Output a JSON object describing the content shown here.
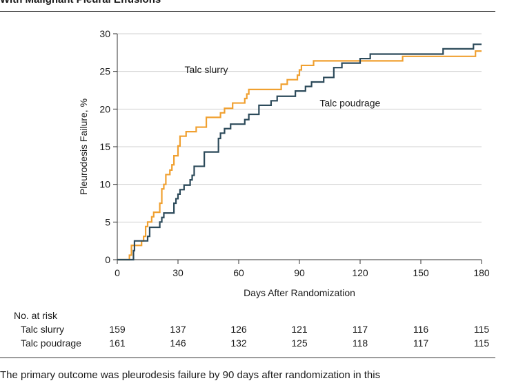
{
  "figure_title": "With Malignant Pleural Effusions",
  "bottom_text": "The primary outcome was pleurodesis failure by 90 days after randomization in this",
  "chart_data": {
    "type": "line",
    "step": true,
    "xlabel": "Days After Randomization",
    "ylabel": "Pleurodesis Failure, %",
    "xlim": [
      0,
      180
    ],
    "ylim": [
      0,
      30
    ],
    "xticks": [
      0,
      30,
      60,
      90,
      120,
      150,
      180
    ],
    "yticks": [
      0,
      5,
      10,
      15,
      20,
      25,
      30
    ],
    "grid": "horizontal",
    "series": [
      {
        "name": "Talc slurry",
        "color": "#F0A030",
        "points": [
          [
            0,
            0
          ],
          [
            5,
            0
          ],
          [
            6,
            0.6
          ],
          [
            7,
            1.9
          ],
          [
            11,
            1.9
          ],
          [
            12,
            2.5
          ],
          [
            13,
            3.1
          ],
          [
            14,
            4.4
          ],
          [
            15,
            5.0
          ],
          [
            16,
            5.0
          ],
          [
            17,
            5.7
          ],
          [
            18,
            6.3
          ],
          [
            20,
            6.3
          ],
          [
            21,
            7.5
          ],
          [
            22,
            9.4
          ],
          [
            23,
            10.0
          ],
          [
            24,
            11.3
          ],
          [
            25,
            11.3
          ],
          [
            26,
            11.9
          ],
          [
            27,
            12.6
          ],
          [
            28,
            13.8
          ],
          [
            30,
            15.1
          ],
          [
            31,
            16.4
          ],
          [
            33,
            16.4
          ],
          [
            34,
            17.0
          ],
          [
            38,
            17.0
          ],
          [
            39,
            17.6
          ],
          [
            43,
            17.6
          ],
          [
            44,
            18.9
          ],
          [
            50,
            18.9
          ],
          [
            51,
            19.5
          ],
          [
            53,
            20.1
          ],
          [
            56,
            20.1
          ],
          [
            57,
            20.8
          ],
          [
            62,
            20.8
          ],
          [
            63,
            21.4
          ],
          [
            64,
            22.0
          ],
          [
            65,
            22.6
          ],
          [
            80,
            22.6
          ],
          [
            81,
            23.3
          ],
          [
            84,
            23.9
          ],
          [
            88,
            23.9
          ],
          [
            89,
            24.5
          ],
          [
            90,
            25.2
          ],
          [
            91,
            25.8
          ],
          [
            96,
            25.8
          ],
          [
            97,
            26.4
          ],
          [
            118,
            26.4
          ],
          [
            119,
            26.4
          ],
          [
            140,
            26.4
          ],
          [
            141,
            27.0
          ],
          [
            176,
            27.0
          ],
          [
            177,
            27.7
          ],
          [
            180,
            27.7
          ]
        ]
      },
      {
        "name": "Talc poudrage",
        "color": "#2C4A5A",
        "points": [
          [
            0,
            0
          ],
          [
            7,
            0
          ],
          [
            8,
            1.2
          ],
          [
            8.5,
            2.5
          ],
          [
            14,
            2.5
          ],
          [
            15,
            3.1
          ],
          [
            16,
            4.3
          ],
          [
            20,
            4.3
          ],
          [
            21,
            5.0
          ],
          [
            22,
            5.6
          ],
          [
            23,
            6.2
          ],
          [
            27,
            6.2
          ],
          [
            28,
            7.5
          ],
          [
            29,
            8.1
          ],
          [
            30,
            8.7
          ],
          [
            31,
            9.3
          ],
          [
            33,
            9.9
          ],
          [
            36,
            10.6
          ],
          [
            37,
            11.2
          ],
          [
            38,
            12.4
          ],
          [
            42,
            12.4
          ],
          [
            43,
            14.3
          ],
          [
            49,
            14.3
          ],
          [
            50,
            16.1
          ],
          [
            51,
            16.8
          ],
          [
            53,
            17.4
          ],
          [
            56,
            18.0
          ],
          [
            62,
            18.0
          ],
          [
            63,
            18.6
          ],
          [
            65,
            19.3
          ],
          [
            69,
            19.3
          ],
          [
            70,
            20.5
          ],
          [
            75,
            20.5
          ],
          [
            76,
            21.1
          ],
          [
            79,
            21.7
          ],
          [
            87,
            21.7
          ],
          [
            88,
            22.4
          ],
          [
            92,
            22.4
          ],
          [
            93,
            23.0
          ],
          [
            96,
            23.6
          ],
          [
            101,
            23.6
          ],
          [
            102,
            24.2
          ],
          [
            106,
            24.2
          ],
          [
            107,
            25.5
          ],
          [
            110,
            25.5
          ],
          [
            111,
            26.1
          ],
          [
            119,
            26.1
          ],
          [
            120,
            26.7
          ],
          [
            124,
            26.7
          ],
          [
            125,
            27.3
          ],
          [
            160,
            27.3
          ],
          [
            161,
            28.0
          ],
          [
            175,
            28.0
          ],
          [
            176,
            28.6
          ],
          [
            180,
            28.6
          ]
        ]
      }
    ],
    "annotations": [
      {
        "text": "Talc slurry",
        "series": "Talc slurry",
        "x": 44,
        "y": 22.6
      },
      {
        "text": "Talc poudrage",
        "series": "Talc poudrage",
        "x": 100,
        "y": 21.1
      }
    ]
  },
  "risk_table": {
    "title": "No. at risk",
    "rows": [
      {
        "label": "Talc slurry",
        "values": [
          159,
          137,
          126,
          121,
          117,
          116,
          115
        ]
      },
      {
        "label": "Talc poudrage",
        "values": [
          161,
          146,
          132,
          125,
          118,
          117,
          115
        ]
      }
    ]
  }
}
